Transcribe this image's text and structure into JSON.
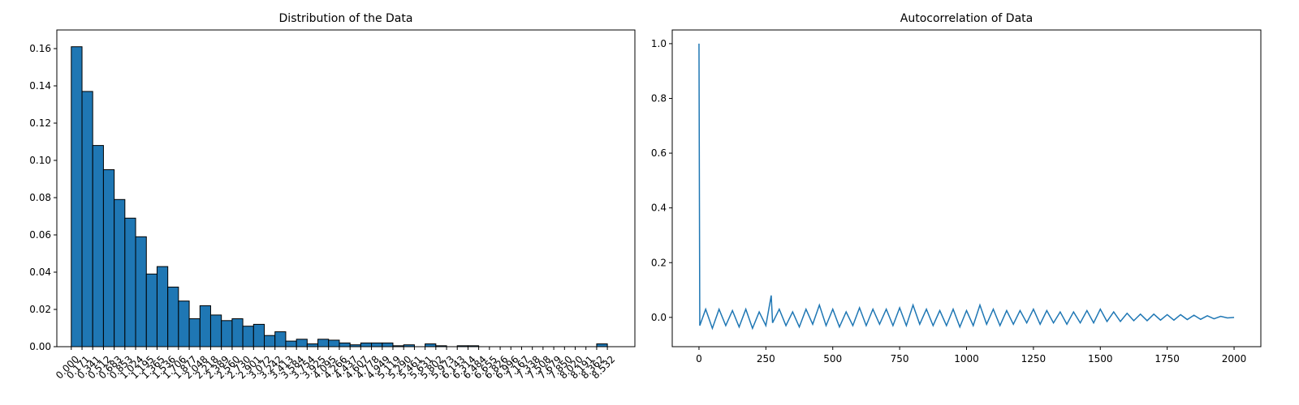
{
  "chart_data": [
    {
      "type": "histogram",
      "title": "Distribution of the Data",
      "color": "#1f77b4",
      "edgecolor": "#000000",
      "bins": [
        0.0,
        0.171,
        0.341,
        0.512,
        0.683,
        0.853,
        1.024,
        1.195,
        1.365,
        1.536,
        1.706,
        1.877,
        2.048,
        2.218,
        2.389,
        2.56,
        2.73,
        2.901,
        3.072,
        3.242,
        3.413,
        3.584,
        3.754,
        3.925,
        4.095,
        4.266,
        4.437,
        4.607,
        4.778,
        4.949,
        5.119,
        5.29,
        5.461,
        5.631,
        5.802,
        5.973,
        6.143,
        6.314,
        6.484,
        6.655,
        6.826,
        6.996,
        7.167,
        7.338,
        7.508,
        7.679,
        7.85,
        8.02,
        8.191,
        8.362,
        8.532
      ],
      "counts": [
        0.161,
        0.137,
        0.108,
        0.095,
        0.079,
        0.069,
        0.059,
        0.039,
        0.043,
        0.032,
        0.0245,
        0.015,
        0.022,
        0.017,
        0.014,
        0.015,
        0.011,
        0.012,
        0.006,
        0.008,
        0.003,
        0.004,
        0.0015,
        0.004,
        0.0035,
        0.002,
        0.001,
        0.002,
        0.002,
        0.002,
        0.0005,
        0.001,
        0,
        0.0015,
        0.0005,
        0,
        0.0005,
        0.0005,
        0,
        0,
        0,
        0,
        0,
        0,
        0,
        0,
        0,
        0,
        0,
        0.0015
      ],
      "xlim": [
        -0.23,
        8.97
      ],
      "ylim": [
        0,
        0.17
      ],
      "xticks": [
        {
          "value": 0.0,
          "label": "0.000"
        },
        {
          "value": 0.171,
          "label": "0.171"
        },
        {
          "value": 0.341,
          "label": "0.341"
        },
        {
          "value": 0.512,
          "label": "0.512"
        },
        {
          "value": 0.683,
          "label": "0.683"
        },
        {
          "value": 0.853,
          "label": "0.853"
        },
        {
          "value": 1.024,
          "label": "1.024"
        },
        {
          "value": 1.195,
          "label": "1.195"
        },
        {
          "value": 1.365,
          "label": "1.365"
        },
        {
          "value": 1.536,
          "label": "1.536"
        },
        {
          "value": 1.706,
          "label": "1.706"
        },
        {
          "value": 1.877,
          "label": "1.877"
        },
        {
          "value": 2.048,
          "label": "2.048"
        },
        {
          "value": 2.218,
          "label": "2.218"
        },
        {
          "value": 2.389,
          "label": "2.389"
        },
        {
          "value": 2.56,
          "label": "2.560"
        },
        {
          "value": 2.73,
          "label": "2.730"
        },
        {
          "value": 2.901,
          "label": "2.901"
        },
        {
          "value": 3.072,
          "label": "3.072"
        },
        {
          "value": 3.242,
          "label": "3.242"
        },
        {
          "value": 3.413,
          "label": "3.413"
        },
        {
          "value": 3.584,
          "label": "3.584"
        },
        {
          "value": 3.754,
          "label": "3.754"
        },
        {
          "value": 3.925,
          "label": "3.925"
        },
        {
          "value": 4.095,
          "label": "4.095"
        },
        {
          "value": 4.266,
          "label": "4.266"
        },
        {
          "value": 4.437,
          "label": "4.437"
        },
        {
          "value": 4.607,
          "label": "4.607"
        },
        {
          "value": 4.778,
          "label": "4.778"
        },
        {
          "value": 4.949,
          "label": "4.949"
        },
        {
          "value": 5.119,
          "label": "5.119"
        },
        {
          "value": 5.29,
          "label": "5.290"
        },
        {
          "value": 5.461,
          "label": "5.461"
        },
        {
          "value": 5.631,
          "label": "5.631"
        },
        {
          "value": 5.802,
          "label": "5.802"
        },
        {
          "value": 5.973,
          "label": "5.973"
        },
        {
          "value": 6.143,
          "label": "6.143"
        },
        {
          "value": 6.314,
          "label": "6.314"
        },
        {
          "value": 6.484,
          "label": "6.484"
        },
        {
          "value": 6.655,
          "label": "6.655"
        },
        {
          "value": 6.826,
          "label": "6.826"
        },
        {
          "value": 6.996,
          "label": "6.996"
        },
        {
          "value": 7.167,
          "label": "7.167"
        },
        {
          "value": 7.338,
          "label": "7.338"
        },
        {
          "value": 7.508,
          "label": "7.508"
        },
        {
          "value": 7.679,
          "label": "7.679"
        },
        {
          "value": 7.85,
          "label": "7.850"
        },
        {
          "value": 8.02,
          "label": "8.020"
        },
        {
          "value": 8.191,
          "label": "8.191"
        },
        {
          "value": 8.362,
          "label": "8.362"
        },
        {
          "value": 8.532,
          "label": "8.532"
        }
      ],
      "yticks": [
        {
          "value": 0,
          "label": "0.00"
        },
        {
          "value": 0.02,
          "label": "0.02"
        },
        {
          "value": 0.04,
          "label": "0.04"
        },
        {
          "value": 0.06,
          "label": "0.06"
        },
        {
          "value": 0.08,
          "label": "0.08"
        },
        {
          "value": 0.1,
          "label": "0.10"
        },
        {
          "value": 0.12,
          "label": "0.12"
        },
        {
          "value": 0.14,
          "label": "0.14"
        },
        {
          "value": 0.16,
          "label": "0.16"
        }
      ]
    },
    {
      "type": "line",
      "title": "Autocorrelation of Data",
      "color": "#1f77b4",
      "x": [
        0,
        3,
        25,
        50,
        75,
        100,
        125,
        150,
        175,
        200,
        225,
        250,
        270,
        275,
        300,
        325,
        350,
        375,
        400,
        425,
        450,
        475,
        500,
        525,
        550,
        575,
        600,
        625,
        650,
        675,
        700,
        725,
        750,
        775,
        800,
        825,
        850,
        875,
        900,
        925,
        950,
        975,
        1000,
        1025,
        1050,
        1075,
        1100,
        1125,
        1150,
        1175,
        1200,
        1225,
        1250,
        1275,
        1300,
        1325,
        1350,
        1375,
        1400,
        1425,
        1450,
        1475,
        1500,
        1525,
        1550,
        1575,
        1600,
        1625,
        1650,
        1675,
        1700,
        1725,
        1750,
        1775,
        1800,
        1825,
        1850,
        1875,
        1900,
        1925,
        1950,
        1975,
        2000
      ],
      "values": [
        1.0,
        -0.03,
        0.03,
        -0.04,
        0.03,
        -0.03,
        0.025,
        -0.035,
        0.03,
        -0.04,
        0.02,
        -0.03,
        0.08,
        -0.02,
        0.03,
        -0.03,
        0.02,
        -0.035,
        0.03,
        -0.025,
        0.045,
        -0.03,
        0.03,
        -0.035,
        0.02,
        -0.03,
        0.035,
        -0.03,
        0.03,
        -0.025,
        0.03,
        -0.03,
        0.035,
        -0.03,
        0.045,
        -0.025,
        0.03,
        -0.03,
        0.025,
        -0.03,
        0.03,
        -0.035,
        0.025,
        -0.03,
        0.045,
        -0.025,
        0.03,
        -0.03,
        0.025,
        -0.025,
        0.025,
        -0.02,
        0.03,
        -0.025,
        0.025,
        -0.02,
        0.02,
        -0.025,
        0.02,
        -0.02,
        0.025,
        -0.02,
        0.03,
        -0.015,
        0.02,
        -0.015,
        0.015,
        -0.012,
        0.012,
        -0.012,
        0.012,
        -0.01,
        0.01,
        -0.01,
        0.01,
        -0.008,
        0.008,
        -0.007,
        0.006,
        -0.005,
        0.004,
        -0.002,
        0
      ],
      "xlim": [
        -100,
        2100
      ],
      "ylim": [
        -0.107,
        1.05
      ],
      "xticks": [
        0,
        250,
        500,
        750,
        1000,
        1250,
        1500,
        1750,
        2000
      ],
      "yticks": [
        {
          "value": 0,
          "label": "0.0"
        },
        {
          "value": 0.2,
          "label": "0.2"
        },
        {
          "value": 0.4,
          "label": "0.4"
        },
        {
          "value": 0.6,
          "label": "0.6"
        },
        {
          "value": 0.8,
          "label": "0.8"
        },
        {
          "value": 1.0,
          "label": "1.0"
        }
      ]
    }
  ]
}
